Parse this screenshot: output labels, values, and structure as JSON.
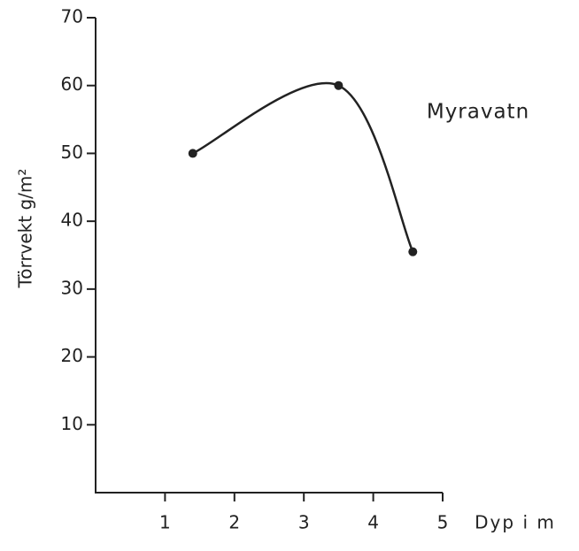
{
  "chart_data": {
    "type": "line",
    "y_label": "Törrvekt g/m²",
    "x_label": "Dyp i m",
    "annotation": "Myravatn",
    "x": [
      1.4,
      3.5,
      4.57
    ],
    "series": [
      {
        "name": "Myravatn",
        "color": "#222222",
        "values": [
          50,
          60,
          35.5
        ]
      }
    ],
    "xlim": [
      0,
      5
    ],
    "ylim": [
      0,
      70
    ],
    "xticks": [
      1,
      2,
      3,
      4,
      5
    ],
    "yticks": [
      10,
      20,
      30,
      40,
      50,
      60,
      70
    ],
    "grid": false
  }
}
